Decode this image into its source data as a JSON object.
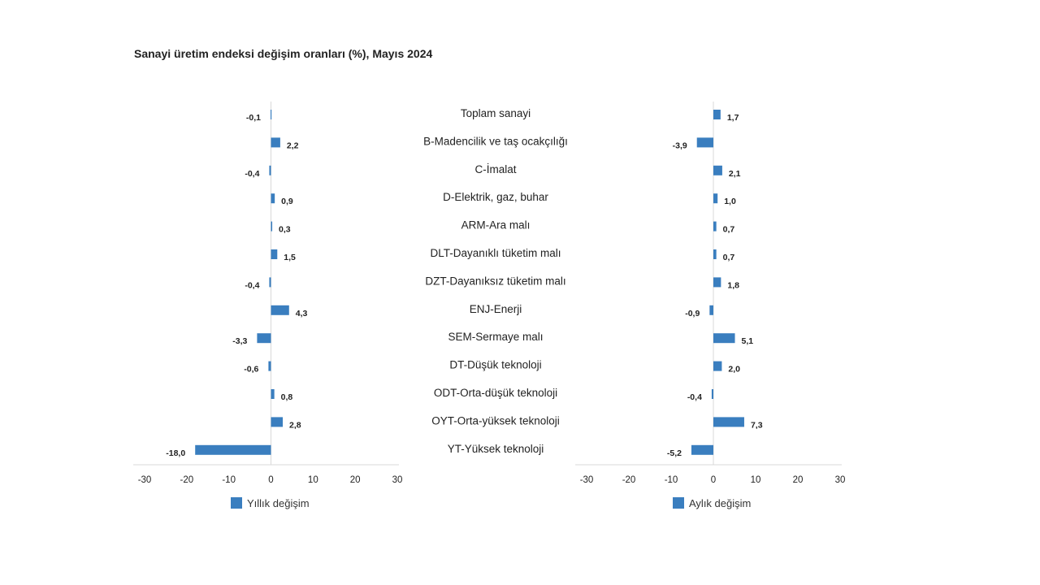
{
  "chart_data": {
    "type": "bar",
    "orientation": "horizontal",
    "title": "Sanayi üretim endeksi değişim oranları (%), Mayıs 2024",
    "categories": [
      "Toplam sanayi",
      "B-Madencilik ve taş ocakçılığı",
      "C-İmalat",
      "D-Elektrik, gaz, buhar",
      "ARM-Ara malı",
      "DLT-Dayanıklı tüketim malı",
      "DZT-Dayanıksız tüketim malı",
      "ENJ-Enerji",
      "SEM-Sermaye malı",
      "DT-Düşük teknoloji",
      "ODT-Orta-düşük teknoloji",
      "OYT-Orta-yüksek teknoloji",
      "YT-Yüksek teknoloji"
    ],
    "series": [
      {
        "name": "Yıllık değişim",
        "color": "#3a7ebf",
        "values": [
          -0.1,
          2.2,
          -0.4,
          0.9,
          0.3,
          1.5,
          -0.4,
          4.3,
          -3.3,
          -0.6,
          0.8,
          2.8,
          -18.0
        ],
        "labels": [
          "-0,1",
          "2,2",
          "-0,4",
          "0,9",
          "0,3",
          "1,5",
          "-0,4",
          "4,3",
          "-3,3",
          "-0,6",
          "0,8",
          "2,8",
          "-18,0"
        ]
      },
      {
        "name": "Aylık değişim",
        "color": "#3a7ebf",
        "values": [
          1.7,
          -3.9,
          2.1,
          1.0,
          0.7,
          0.7,
          1.8,
          -0.9,
          5.1,
          2.0,
          -0.4,
          7.3,
          -5.2
        ],
        "labels": [
          "1,7",
          "-3,9",
          "2,1",
          "1,0",
          "0,7",
          "0,7",
          "1,8",
          "-0,9",
          "5,1",
          "2,0",
          "-0,4",
          "7,3",
          "-5,2"
        ]
      }
    ],
    "xlim": [
      -30,
      30
    ],
    "xticks": [
      "-30",
      "-20",
      "-10",
      "0",
      "10",
      "20",
      "30"
    ],
    "grid": false,
    "legend": "bottom-left"
  }
}
